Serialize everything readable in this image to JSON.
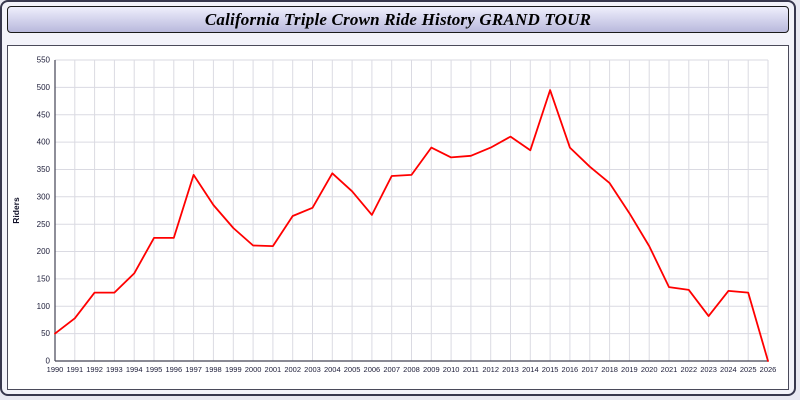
{
  "header": {
    "title": "California Triple Crown Ride History GRAND TOUR"
  },
  "chart_data": {
    "type": "line",
    "title": "California Triple Crown Ride History GRAND TOUR",
    "xlabel": "",
    "ylabel": "Riders",
    "ylim": [
      0,
      550
    ],
    "ytick_step": 50,
    "grid": true,
    "legend_position": "none",
    "line_color": "#ff0000",
    "grid_color": "#dadae2",
    "axis_color": "#444455",
    "tick_label_color": "#1c1c38",
    "x": [
      "1990",
      "1991",
      "1992",
      "1993",
      "1994",
      "1995",
      "1996",
      "1997",
      "1998",
      "1999",
      "2000",
      "2001",
      "2002",
      "2003",
      "2004",
      "2005",
      "2006",
      "2007",
      "2008",
      "2009",
      "2010",
      "2011",
      "2012",
      "2013",
      "2014",
      "2015",
      "2016",
      "2017",
      "2018",
      "2019",
      "2020",
      "2021",
      "2022",
      "2023",
      "2024",
      "2025",
      "2026"
    ],
    "values": [
      50,
      78,
      125,
      125,
      160,
      225,
      225,
      340,
      285,
      243,
      211,
      210,
      265,
      280,
      343,
      310,
      267,
      338,
      340,
      390,
      372,
      375,
      390,
      410,
      385,
      495,
      390,
      355,
      325,
      270,
      210,
      135,
      130,
      82,
      128,
      125,
      0
    ]
  }
}
